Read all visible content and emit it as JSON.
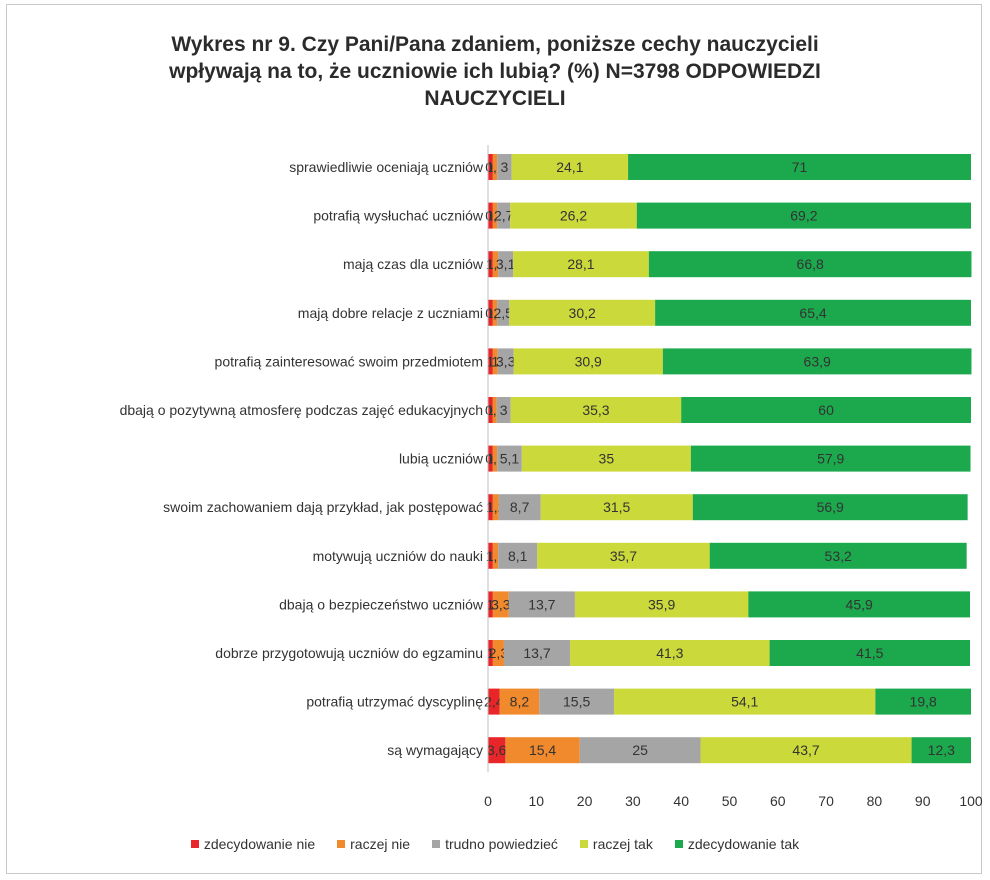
{
  "chart_data": {
    "type": "bar",
    "orientation": "horizontal",
    "stacked": true,
    "title_lines": [
      "Wykres nr 9. Czy Pani/Pana zdaniem, poniższe cechy nauczycieli",
      "wpływają na to, że uczniowie ich lubią? (%) N=3798 ODPOWIEDZI",
      "NAUCZYCIELI"
    ],
    "categories": [
      "sprawiedliwie oceniają uczniów",
      "potrafią wysłuchać uczniów",
      "mają czas dla uczniów",
      "mają dobre relacje z uczniami",
      "potrafią zainteresować swoim przedmiotem",
      "dbają o pozytywną atmosferę podczas zajęć edukacyjnych",
      "lubią uczniów",
      "swoim zachowaniem dają przykład, jak postępować",
      "motywują uczniów do nauki",
      "dbają o bezpieczeństwo uczniów",
      "dobrze przygotowują uczniów do egzaminu",
      "potrafią utrzymać dyscyplinę",
      "są wymagający"
    ],
    "series": [
      {
        "name": "zdecydowanie nie",
        "color": "#e8262a",
        "values": [
          1,
          1,
          1,
          1,
          1,
          1,
          1,
          1,
          1,
          1,
          1,
          2.4,
          3.6
        ]
      },
      {
        "name": "raczej nie",
        "color": "#f08a2c",
        "values": [
          0.9,
          0.9,
          1.1,
          0.9,
          1,
          0.8,
          0.9,
          1.2,
          1.1,
          3.3,
          2.3,
          8.2,
          15.4
        ]
      },
      {
        "name": "trudno powiedzieć",
        "color": "#a5a5a5",
        "values": [
          3,
          2.7,
          3.1,
          2.5,
          3.3,
          2.9,
          5.1,
          8.7,
          8.1,
          13.7,
          13.7,
          15.5,
          25
        ]
      },
      {
        "name": "raczej tak",
        "color": "#cbd93a",
        "values": [
          24.1,
          26.2,
          28.1,
          30.2,
          30.9,
          35.3,
          35,
          31.5,
          35.7,
          35.9,
          41.3,
          54.1,
          43.7
        ]
      },
      {
        "name": "zdecydowanie tak",
        "color": "#1ca84c",
        "values": [
          71,
          69.2,
          66.8,
          65.4,
          63.9,
          60,
          57.9,
          56.9,
          53.2,
          45.9,
          41.5,
          19.8,
          12.3
        ]
      }
    ],
    "data_labels": [
      [
        "1",
        "0,9",
        "3",
        "24,1",
        "71"
      ],
      [
        "1",
        "0,9",
        "2,7",
        "26,2",
        "69,2"
      ],
      [
        "1",
        "1,1",
        "3,1",
        "28,1",
        "66,8"
      ],
      [
        "1",
        "0,9",
        "2,5",
        "30,2",
        "65,4"
      ],
      [
        "1",
        "1",
        "3,3",
        "30,9",
        "63,9"
      ],
      [
        "1",
        "0,8",
        "3",
        "35,3",
        "60"
      ],
      [
        "1",
        "0,9",
        "5,1",
        "35",
        "57,9"
      ],
      [
        "1",
        "1,2",
        "8,7",
        "31,5",
        "56,9"
      ],
      [
        "1",
        "1,1",
        "8,1",
        "35,7",
        "53,2"
      ],
      [
        "1",
        "3,3",
        "13,7",
        "35,9",
        "45,9"
      ],
      [
        "1",
        "2,3",
        "13,7",
        "41,3",
        "41,5"
      ],
      [
        "2,4",
        "8,2",
        "15,5",
        "54,1",
        "19,8"
      ],
      [
        "3,6",
        "15,4",
        "25",
        "43,7",
        "12,3"
      ]
    ],
    "xlim": [
      0,
      100
    ],
    "xticks": [
      "0",
      "10",
      "20",
      "30",
      "40",
      "50",
      "60",
      "70",
      "80",
      "90",
      "100"
    ],
    "grid": false,
    "legend": "bottom"
  }
}
